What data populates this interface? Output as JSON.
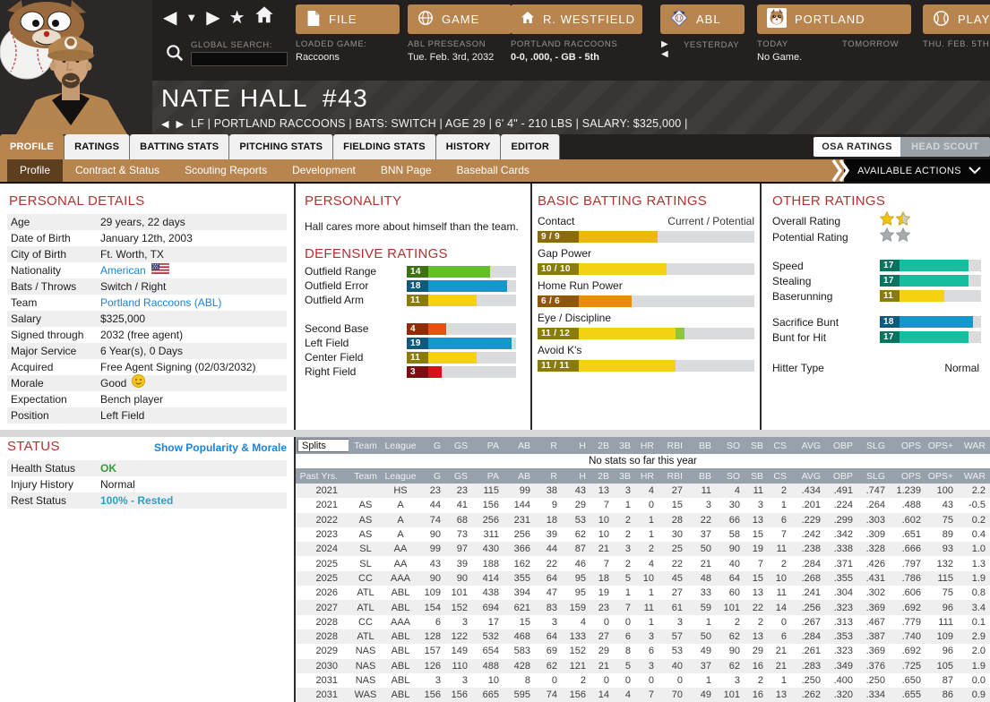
{
  "colors": {
    "accent_tan": "#b8854f",
    "topbar_bg": "#23201f",
    "header_red": "#b23230",
    "link_blue": "#1d82d6",
    "ok_green": "#2f9e3c",
    "rest_blue": "#2b9fc6",
    "table_header_gray": "#97a1ab",
    "star_gold": "#f2c211",
    "star_gray": "#a7abae"
  },
  "rating_colors": {
    "buckets": [
      {
        "max": 3,
        "fill": "#d41117",
        "box": "#7c0d10"
      },
      {
        "max": 5,
        "fill": "#e8500f",
        "box": "#8f2d08"
      },
      {
        "max": 7,
        "fill": "#ea8b10",
        "box": "#8f5508"
      },
      {
        "max": 9,
        "fill": "#eeb70c",
        "box": "#8a6d08"
      },
      {
        "max": 12,
        "fill": "#f4d211",
        "box": "#8a7c0a"
      },
      {
        "max": 15,
        "fill": "#64bf28",
        "box": "#3c7214"
      },
      {
        "max": 17,
        "fill": "#16bd9e",
        "box": "#0c7260"
      },
      {
        "max": 20,
        "fill": "#1697c9",
        "box": "#0e5a78"
      }
    ],
    "potential_fill": "#8cc63e"
  },
  "glyphs": {
    "back": "◀",
    "down": "▼",
    "forward": "▶",
    "star": "★",
    "chevron": "▼"
  },
  "icons": {
    "search": "magnifier-icon",
    "file": "document-icon",
    "game": "globe-icon",
    "manager": "home-icon",
    "league": "shield-icon",
    "team": "raccoon-icon",
    "play": "baseball-icon",
    "actions": "chevron-down-icon"
  },
  "topbar": {
    "global_search_label": "GLOBAL SEARCH:",
    "search_value": "",
    "buttons": {
      "file": "FILE",
      "game": "GAME",
      "manager": "R. WESTFIELD",
      "league": "ABL",
      "team": "PORTLAND",
      "play": "PLAY"
    },
    "file_sub": {
      "label": "LOADED GAME:",
      "value": "Raccoons"
    },
    "game_sub": {
      "label": "ABL PRESEASON",
      "value": "Tue. Feb. 3rd, 2032"
    },
    "manager_sub": {
      "label": "PORTLAND RACCOONS",
      "value": "0-0, .000, - GB - 5th"
    },
    "league_sub": {
      "label": "YESTERDAY"
    },
    "team_sub": {
      "today_label": "TODAY",
      "today_value": "No Game.",
      "tomorrow_label": "TOMORROW"
    },
    "play_sub": {
      "label": "THU. FEB. 5TH"
    }
  },
  "player": {
    "name": "NATE HALL",
    "number": "#43",
    "subtitle": "LF | PORTLAND RACCOONS | BATS: SWITCH | AGE 29 | 6' 4\" - 210 LBS | SALARY: $325,000 |"
  },
  "tabs": [
    {
      "label": "PROFILE",
      "active": true
    },
    {
      "label": "RATINGS",
      "active": false
    },
    {
      "label": "BATTING STATS",
      "active": false
    },
    {
      "label": "PITCHING STATS",
      "active": false
    },
    {
      "label": "FIELDING STATS",
      "active": false
    },
    {
      "label": "HISTORY",
      "active": false
    },
    {
      "label": "EDITOR",
      "active": false
    }
  ],
  "ratings_toggle": {
    "osa": "OSA RATINGS",
    "scout": "HEAD SCOUT"
  },
  "subtabs": [
    {
      "label": "Profile",
      "active": true
    },
    {
      "label": "Contract & Status",
      "active": false
    },
    {
      "label": "Scouting Reports",
      "active": false
    },
    {
      "label": "Development",
      "active": false
    },
    {
      "label": "BNN Page",
      "active": false
    },
    {
      "label": "Baseball Cards",
      "active": false
    }
  ],
  "available_actions_label": "AVAILABLE ACTIONS",
  "personal_details": {
    "title": "PERSONAL DETAILS",
    "rows": [
      {
        "label": "Age",
        "value": "29 years, 22 days"
      },
      {
        "label": "Date of Birth",
        "value": "January 12th, 2003"
      },
      {
        "label": "City of Birth",
        "value": "Ft. Worth, TX"
      },
      {
        "label": "Nationality",
        "value": "American",
        "value_class": "flag-link"
      },
      {
        "label": "Bats / Throws",
        "value": "Switch / Right"
      },
      {
        "label": "Team",
        "value": "Portland Raccoons (ABL)",
        "value_class": "link"
      },
      {
        "label": "Salary",
        "value": "$325,000"
      },
      {
        "label": "Signed through",
        "value": "2032 (free agent)"
      },
      {
        "label": "Major Service",
        "value": "6 Year(s), 0 Days"
      },
      {
        "label": "Acquired",
        "value": "Free Agent Signing (02/03/2032)"
      },
      {
        "label": "Morale",
        "value": "Good",
        "value_class": "morale"
      },
      {
        "label": "Expectation",
        "value": "Bench player"
      },
      {
        "label": "Position",
        "value": "Left Field"
      }
    ]
  },
  "personality": {
    "title": "PERSONALITY",
    "text": "Hall cares more about himself than the team."
  },
  "defensive_ratings": {
    "title": "DEFENSIVE RATINGS",
    "groups": [
      [
        {
          "label": "Outfield Range",
          "value": 14
        },
        {
          "label": "Outfield Error",
          "value": 18
        },
        {
          "label": "Outfield Arm",
          "value": 11
        }
      ],
      [
        {
          "label": "Second Base",
          "value": 4
        },
        {
          "label": "Left Field",
          "value": 19
        },
        {
          "label": "Center Field",
          "value": 11
        },
        {
          "label": "Right Field",
          "value": 3
        }
      ]
    ]
  },
  "basic_batting": {
    "title": "BASIC BATTING RATINGS",
    "header": "Current / Potential",
    "items": [
      {
        "label": "Contact",
        "current": 9,
        "potential": 9
      },
      {
        "label": "Gap Power",
        "current": 10,
        "potential": 10
      },
      {
        "label": "Home Run Power",
        "current": 6,
        "potential": 6
      },
      {
        "label": "Eye / Discipline",
        "current": 11,
        "potential": 12
      },
      {
        "label": "Avoid K's",
        "current": 11,
        "potential": 11
      }
    ]
  },
  "other_ratings": {
    "title": "OTHER RATINGS",
    "overall_label": "Overall Rating",
    "overall_stars": 1.5,
    "potential_label": "Potential Rating",
    "potential_stars": 2,
    "groups": [
      [
        {
          "label": "Speed",
          "value": 17
        },
        {
          "label": "Stealing",
          "value": 17
        },
        {
          "label": "Baserunning",
          "value": 11
        }
      ],
      [
        {
          "label": "Sacrifice Bunt",
          "value": 18
        },
        {
          "label": "Bunt for Hit",
          "value": 17
        }
      ]
    ],
    "hitter_type_label": "Hitter Type",
    "hitter_type_value": "Normal"
  },
  "status_panel": {
    "title": "STATUS",
    "link": "Show Popularity & Morale",
    "rows": [
      {
        "label": "Health Status",
        "value": "OK",
        "value_class": "green-bold"
      },
      {
        "label": "Injury History",
        "value": "Normal"
      },
      {
        "label": "Rest Status",
        "value": "100% - Rested",
        "value_class": "blue-bold"
      }
    ]
  },
  "stats_table": {
    "splits_label": "Splits",
    "no_stats_text": "No stats so far this year",
    "past_years_label": "Past Yrs.",
    "columns": [
      "Team",
      "League",
      "G",
      "GS",
      "PA",
      "AB",
      "R",
      "H",
      "2B",
      "3B",
      "HR",
      "RBI",
      "BB",
      "SO",
      "SB",
      "CS",
      "AVG",
      "OBP",
      "SLG",
      "OPS",
      "OPS+",
      "WAR"
    ],
    "rows": [
      [
        "2021",
        "",
        "HS",
        "23",
        "23",
        "115",
        "99",
        "38",
        "43",
        "13",
        "3",
        "4",
        "27",
        "11",
        "4",
        "11",
        "2",
        ".434",
        ".491",
        ".747",
        "1.239",
        "100",
        "2.2"
      ],
      [
        "2021",
        "AS",
        "A",
        "44",
        "41",
        "156",
        "144",
        "9",
        "29",
        "7",
        "1",
        "0",
        "15",
        "3",
        "30",
        "3",
        "1",
        ".201",
        ".224",
        ".264",
        ".488",
        "43",
        "-0.5"
      ],
      [
        "2022",
        "AS",
        "A",
        "74",
        "68",
        "256",
        "231",
        "18",
        "53",
        "10",
        "2",
        "1",
        "28",
        "22",
        "66",
        "13",
        "6",
        ".229",
        ".299",
        ".303",
        ".602",
        "75",
        "0.2"
      ],
      [
        "2023",
        "AS",
        "A",
        "90",
        "73",
        "311",
        "256",
        "39",
        "62",
        "10",
        "2",
        "1",
        "30",
        "37",
        "58",
        "15",
        "7",
        ".242",
        ".342",
        ".309",
        ".651",
        "89",
        "0.4"
      ],
      [
        "2024",
        "SL",
        "AA",
        "99",
        "97",
        "430",
        "366",
        "44",
        "87",
        "21",
        "3",
        "2",
        "25",
        "50",
        "90",
        "19",
        "11",
        ".238",
        ".338",
        ".328",
        ".666",
        "93",
        "1.0"
      ],
      [
        "2025",
        "SL",
        "AA",
        "43",
        "39",
        "188",
        "162",
        "22",
        "46",
        "7",
        "2",
        "4",
        "22",
        "21",
        "40",
        "7",
        "2",
        ".284",
        ".371",
        ".426",
        ".797",
        "132",
        "1.3"
      ],
      [
        "2025",
        "CC",
        "AAA",
        "90",
        "90",
        "414",
        "355",
        "64",
        "95",
        "18",
        "5",
        "10",
        "45",
        "48",
        "64",
        "15",
        "10",
        ".268",
        ".355",
        ".431",
        ".786",
        "115",
        "1.9"
      ],
      [
        "2026",
        "ATL",
        "ABL",
        "109",
        "101",
        "438",
        "394",
        "47",
        "95",
        "19",
        "1",
        "1",
        "27",
        "33",
        "60",
        "13",
        "11",
        ".241",
        ".304",
        ".302",
        ".606",
        "75",
        "0.8"
      ],
      [
        "2027",
        "ATL",
        "ABL",
        "154",
        "152",
        "694",
        "621",
        "83",
        "159",
        "23",
        "7",
        "11",
        "61",
        "59",
        "101",
        "22",
        "14",
        ".256",
        ".323",
        ".369",
        ".692",
        "96",
        "3.4"
      ],
      [
        "2028",
        "CC",
        "AAA",
        "6",
        "3",
        "17",
        "15",
        "3",
        "4",
        "0",
        "0",
        "1",
        "3",
        "1",
        "2",
        "2",
        "0",
        ".267",
        ".313",
        ".467",
        ".779",
        "111",
        "0.1"
      ],
      [
        "2028",
        "ATL",
        "ABL",
        "128",
        "122",
        "532",
        "468",
        "64",
        "133",
        "27",
        "6",
        "3",
        "57",
        "50",
        "62",
        "13",
        "6",
        ".284",
        ".353",
        ".387",
        ".740",
        "109",
        "2.9"
      ],
      [
        "2029",
        "NAS",
        "ABL",
        "157",
        "149",
        "654",
        "583",
        "69",
        "152",
        "29",
        "8",
        "6",
        "53",
        "49",
        "90",
        "29",
        "21",
        ".261",
        ".323",
        ".369",
        ".692",
        "96",
        "2.0"
      ],
      [
        "2030",
        "NAS",
        "ABL",
        "126",
        "110",
        "488",
        "428",
        "62",
        "121",
        "21",
        "5",
        "3",
        "40",
        "37",
        "62",
        "16",
        "21",
        ".283",
        ".349",
        ".376",
        ".725",
        "105",
        "1.9"
      ],
      [
        "2031",
        "NAS",
        "ABL",
        "3",
        "3",
        "10",
        "8",
        "0",
        "2",
        "0",
        "0",
        "0",
        "0",
        "1",
        "3",
        "2",
        "1",
        ".250",
        ".400",
        ".250",
        ".650",
        "87",
        "0.0"
      ],
      [
        "2031",
        "WAS",
        "ABL",
        "156",
        "156",
        "665",
        "595",
        "74",
        "156",
        "14",
        "4",
        "7",
        "70",
        "49",
        "101",
        "16",
        "13",
        ".262",
        ".320",
        ".334",
        ".655",
        "86",
        "0.9"
      ]
    ]
  }
}
